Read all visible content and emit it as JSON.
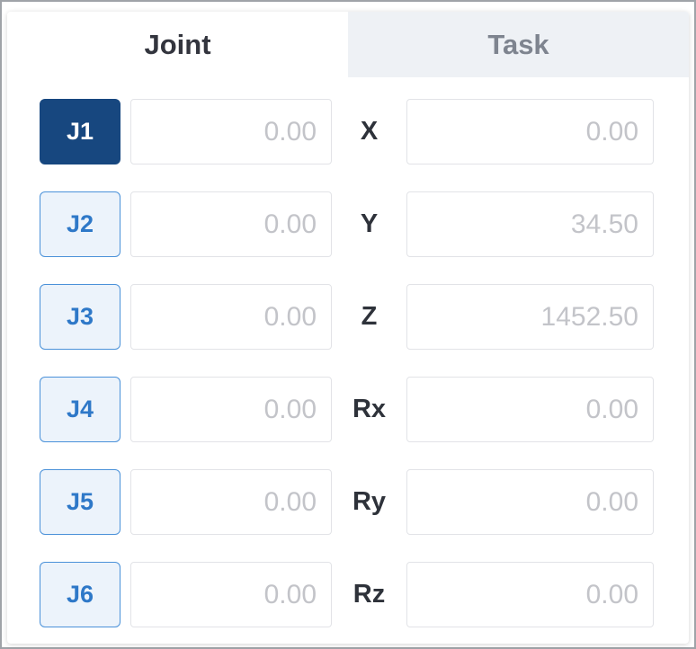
{
  "panel": {
    "tabs": [
      {
        "label": "Joint",
        "active": true
      },
      {
        "label": "Task",
        "active": false
      }
    ],
    "joint": {
      "rows": [
        {
          "button": "J1",
          "value": "0.00",
          "selected": true
        },
        {
          "button": "J2",
          "value": "0.00",
          "selected": false
        },
        {
          "button": "J3",
          "value": "0.00",
          "selected": false
        },
        {
          "button": "J4",
          "value": "0.00",
          "selected": false
        },
        {
          "button": "J5",
          "value": "0.00",
          "selected": false
        },
        {
          "button": "J6",
          "value": "0.00",
          "selected": false
        }
      ]
    },
    "task": {
      "rows": [
        {
          "label": "X",
          "value": "0.00"
        },
        {
          "label": "Y",
          "value": "34.50"
        },
        {
          "label": "Z",
          "value": "1452.50"
        },
        {
          "label": "Rx",
          "value": "0.00"
        },
        {
          "label": "Ry",
          "value": "0.00"
        },
        {
          "label": "Rz",
          "value": "0.00"
        }
      ]
    },
    "colors": {
      "selected_joint_bg": "#17477f",
      "joint_button_border": "#4a91d9",
      "joint_button_text": "#2e78c8",
      "joint_button_bg": "#ecf3fb",
      "active_tab_bg": "#ffffff",
      "active_tab_text": "#33353e",
      "inactive_tab_bg": "#eef1f5",
      "inactive_tab_text": "#7e848f",
      "input_text": "#c3c4c9",
      "input_border": "#e2e3e7"
    }
  }
}
